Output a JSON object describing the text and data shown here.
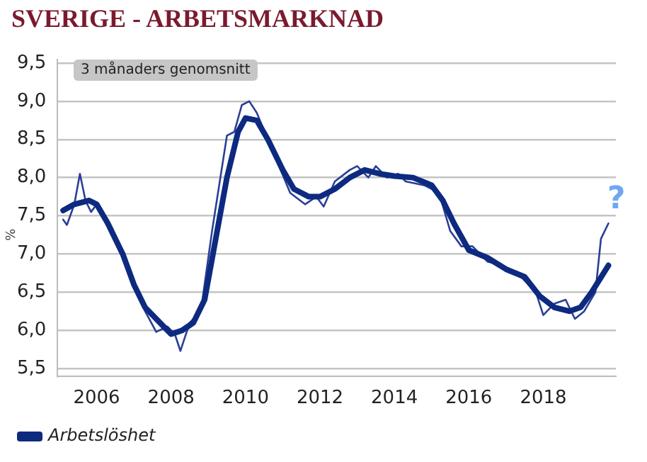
{
  "chart_data": {
    "type": "line",
    "title": "SVERIGE - ARBETSMARKNAD",
    "ylabel": "%",
    "annotations": [
      "3 månaders genomsnitt",
      "?"
    ],
    "xlim": [
      2004.95,
      2019.95
    ],
    "xticks": [
      2006,
      2008,
      2010,
      2012,
      2014,
      2016,
      2018
    ],
    "ylim": [
      5.4,
      9.55
    ],
    "yticks": [
      {
        "value": 5.5,
        "label": "5,5"
      },
      {
        "value": 6,
        "label": "6,0"
      },
      {
        "value": 6.5,
        "label": "6,5"
      },
      {
        "value": 7,
        "label": "7,0"
      },
      {
        "value": 7.5,
        "label": "7,5"
      },
      {
        "value": 8,
        "label": "8,0"
      },
      {
        "value": 8.5,
        "label": "8,5"
      },
      {
        "value": 9,
        "label": "9,0"
      },
      {
        "value": 9.5,
        "label": "9,5"
      }
    ],
    "grid": "y",
    "legend": "bottom left",
    "marker": "none",
    "line_style": "solid",
    "series": [
      {
        "color": "#2a3f96",
        "x": [
          2005.1,
          2005.2,
          2005.4,
          2005.55,
          2005.7,
          2005.85,
          2006.0,
          2006.3,
          2006.7,
          2007.0,
          2007.3,
          2007.6,
          2007.9,
          2008.1,
          2008.25,
          2008.5,
          2008.8,
          2009.1,
          2009.5,
          2009.7,
          2009.9,
          2010.1,
          2010.3,
          2010.6,
          2011.2,
          2011.6,
          2011.9,
          2012.1,
          2012.4,
          2012.8,
          2013.0,
          2013.3,
          2013.5,
          2013.8,
          2014.1,
          2014.3,
          2014.8,
          2015.2,
          2015.5,
          2015.8,
          2016.1,
          2016.5,
          2016.9,
          2017.3,
          2017.8,
          2018.0,
          2018.3,
          2018.6,
          2018.85,
          2019.1,
          2019.4,
          2019.55,
          2019.75
        ],
        "values": [
          7.45,
          7.38,
          7.65,
          8.05,
          7.7,
          7.55,
          7.65,
          7.35,
          6.95,
          6.6,
          6.25,
          5.98,
          6.05,
          5.95,
          5.73,
          6.1,
          6.25,
          7.3,
          8.55,
          8.6,
          8.95,
          9.0,
          8.85,
          8.5,
          7.8,
          7.65,
          7.75,
          7.62,
          7.95,
          8.1,
          8.15,
          8.0,
          8.15,
          8.0,
          8.05,
          7.95,
          7.9,
          7.8,
          7.3,
          7.1,
          7.1,
          6.9,
          6.85,
          6.75,
          6.5,
          6.2,
          6.35,
          6.4,
          6.15,
          6.25,
          6.5,
          7.2,
          7.4
        ]
      },
      {
        "name": "Arbetslöshet",
        "color": "#0d2a80",
        "x": [
          2005.1,
          2005.4,
          2005.8,
          2006.0,
          2006.3,
          2006.7,
          2007.0,
          2007.3,
          2007.7,
          2008.0,
          2008.3,
          2008.6,
          2008.9,
          2009.2,
          2009.5,
          2009.8,
          2010.0,
          2010.3,
          2010.6,
          2011.0,
          2011.3,
          2011.7,
          2012.0,
          2012.4,
          2012.8,
          2013.2,
          2013.6,
          2014.0,
          2014.5,
          2015.0,
          2015.3,
          2015.6,
          2016.0,
          2016.5,
          2017.0,
          2017.5,
          2017.9,
          2018.3,
          2018.7,
          2019.0,
          2019.3,
          2019.75
        ],
        "values": [
          7.57,
          7.65,
          7.7,
          7.65,
          7.4,
          7.0,
          6.6,
          6.3,
          6.1,
          5.95,
          6.0,
          6.1,
          6.4,
          7.2,
          8.0,
          8.6,
          8.78,
          8.75,
          8.5,
          8.1,
          7.85,
          7.75,
          7.75,
          7.85,
          8.0,
          8.1,
          8.05,
          8.02,
          8.0,
          7.9,
          7.7,
          7.4,
          7.05,
          6.95,
          6.8,
          6.7,
          6.45,
          6.3,
          6.25,
          6.3,
          6.5,
          6.85
        ]
      }
    ]
  }
}
